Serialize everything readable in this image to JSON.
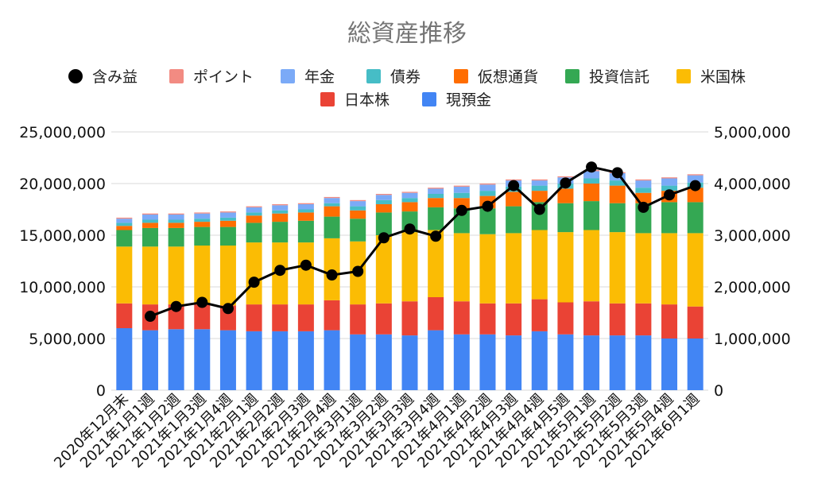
{
  "chart_data": {
    "type": "bar",
    "stacked": true,
    "title": "総資産推移",
    "legend_position": "top",
    "grid": true,
    "xlabel": "",
    "ylabel": "",
    "y_left": {
      "min": 0,
      "max": 25000000,
      "ticks": [
        "0",
        "5,000,000",
        "10,000,000",
        "15,000,000",
        "20,000,000",
        "25,000,000"
      ]
    },
    "y_right": {
      "min": 0,
      "max": 5000000,
      "ticks": [
        "0",
        "1,000,000",
        "2,000,000",
        "3,000,000",
        "4,000,000",
        "5,000,000"
      ]
    },
    "legend_row1": [
      "含み益",
      "ポイント",
      "年金",
      "債券",
      "仮想通貨",
      "投資信託",
      "米国株"
    ],
    "legend_row2": [
      "日本株",
      "現預金"
    ],
    "categories": [
      "2020年12月末",
      "2021年1月1週",
      "2021年1月2週",
      "2021年1月3週",
      "2021年1月4週",
      "2021年2月1週",
      "2021年2月2週",
      "2021年2月3週",
      "2021年2月4週",
      "2021年3月1週",
      "2021年3月2週",
      "2021年3月3週",
      "2021年3月4週",
      "2021年4月1週",
      "2021年4月2週",
      "2021年4月3週",
      "2021年4月4週",
      "2021年4月5週",
      "2021年5月1週",
      "2021年5月2週",
      "2021年5月3週",
      "2021年5月4週",
      "2021年6月1週"
    ],
    "series": [
      {
        "name": "現預金",
        "color": "#4285f4",
        "axis": "left",
        "values": [
          6000000,
          5800000,
          5900000,
          5900000,
          5800000,
          5700000,
          5700000,
          5700000,
          5800000,
          5400000,
          5400000,
          5300000,
          5800000,
          5400000,
          5400000,
          5300000,
          5700000,
          5400000,
          5300000,
          5300000,
          5300000,
          5000000,
          5000000
        ]
      },
      {
        "name": "日本株",
        "color": "#ea4335",
        "axis": "left",
        "values": [
          2400000,
          2500000,
          2400000,
          2400000,
          2400000,
          2600000,
          2600000,
          2600000,
          2900000,
          2900000,
          3000000,
          3300000,
          3200000,
          3200000,
          3000000,
          3100000,
          3100000,
          3100000,
          3300000,
          3100000,
          3100000,
          3300000,
          3100000
        ]
      },
      {
        "name": "米国株",
        "color": "#fbbc04",
        "axis": "left",
        "values": [
          5500000,
          5600000,
          5600000,
          5700000,
          5800000,
          6000000,
          6000000,
          6000000,
          6000000,
          6100000,
          6600000,
          6700000,
          6500000,
          6600000,
          6700000,
          6800000,
          6700000,
          6800000,
          6900000,
          6900000,
          6800000,
          6900000,
          7100000
        ]
      },
      {
        "name": "投資信託",
        "color": "#34a853",
        "axis": "left",
        "values": [
          1600000,
          1800000,
          1800000,
          1800000,
          1800000,
          1900000,
          2000000,
          2100000,
          2100000,
          2200000,
          2200000,
          2000000,
          2200000,
          2400000,
          2500000,
          2600000,
          2700000,
          2800000,
          2800000,
          2800000,
          2900000,
          3000000,
          3000000
        ]
      },
      {
        "name": "仮想通貨",
        "color": "#ff6d01",
        "axis": "left",
        "values": [
          400000,
          500000,
          500000,
          500000,
          600000,
          700000,
          800000,
          800000,
          1000000,
          800000,
          800000,
          900000,
          900000,
          1000000,
          1200000,
          1400000,
          1100000,
          1400000,
          1700000,
          1700000,
          1000000,
          1100000,
          1400000
        ]
      },
      {
        "name": "債券",
        "color": "#46bdc6",
        "axis": "left",
        "values": [
          300000,
          300000,
          300000,
          300000,
          300000,
          300000,
          300000,
          300000,
          300000,
          400000,
          400000,
          400000,
          400000,
          500000,
          500000,
          500000,
          500000,
          500000,
          500000,
          500000,
          500000,
          500000,
          500000
        ]
      },
      {
        "name": "年金",
        "color": "#7baaf7",
        "axis": "left",
        "values": [
          400000,
          500000,
          500000,
          500000,
          500000,
          500000,
          500000,
          500000,
          500000,
          500000,
          500000,
          500000,
          500000,
          600000,
          600000,
          600000,
          500000,
          600000,
          700000,
          700000,
          700000,
          700000,
          700000
        ]
      },
      {
        "name": "ポイント",
        "color": "#f28b82",
        "axis": "left",
        "values": [
          100000,
          100000,
          100000,
          100000,
          100000,
          100000,
          100000,
          100000,
          100000,
          100000,
          100000,
          100000,
          100000,
          100000,
          100000,
          100000,
          100000,
          100000,
          100000,
          100000,
          100000,
          100000,
          100000
        ]
      },
      {
        "name": "含み益",
        "color": "#000000",
        "axis": "right",
        "type": "line",
        "values": [
          null,
          1430000,
          1620000,
          1700000,
          1580000,
          2090000,
          2320000,
          2420000,
          2230000,
          2300000,
          2950000,
          3120000,
          2980000,
          3480000,
          3560000,
          3960000,
          3500000,
          4010000,
          4320000,
          4210000,
          3540000,
          3780000,
          3960000
        ]
      }
    ]
  }
}
